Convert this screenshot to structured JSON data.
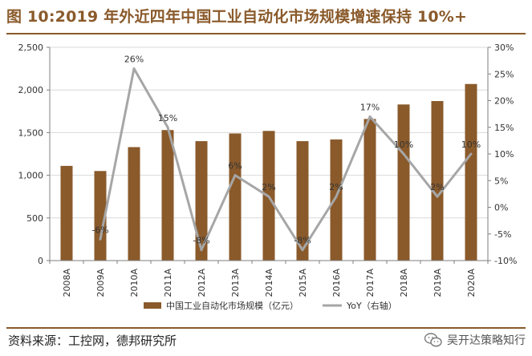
{
  "header": {
    "title": "图 10:2019 年外近四年中国工业自动化市场规模增速保持 10%+"
  },
  "footer": {
    "source": "资料来源：工控网，德邦研究所",
    "watermark": "吴开达策略知行"
  },
  "colors": {
    "bar": "#8a5a2b",
    "line": "#a6a6a6",
    "title": "#8a5a2b",
    "axis": "#7f7f7f"
  },
  "chart_data": {
    "type": "bar",
    "title": "",
    "categories": [
      "2008A",
      "2009A",
      "2010A",
      "2011A",
      "2012A",
      "2013A",
      "2014A",
      "2015A",
      "2016A",
      "2017A",
      "2018A",
      "2019A",
      "2020A"
    ],
    "series": [
      {
        "name": "中国工业自动化市场规模（亿元）",
        "type": "bar",
        "axis": "left",
        "values": [
          1110,
          1050,
          1330,
          1530,
          1400,
          1490,
          1520,
          1400,
          1420,
          1660,
          1830,
          1870,
          2070
        ]
      },
      {
        "name": "YoY（右轴）",
        "type": "line",
        "axis": "right",
        "values": [
          null,
          -6,
          26,
          15,
          -8,
          6,
          2,
          -8,
          2,
          17,
          10,
          2,
          10
        ],
        "labels": [
          "",
          "-6%",
          "26%",
          "15%",
          "-8%",
          "6%",
          "2%",
          "-8%",
          "2%",
          "17%",
          "10%",
          "2%",
          "10%"
        ]
      }
    ],
    "y_left": {
      "range": [
        0,
        2500
      ],
      "ticks": [
        0,
        500,
        1000,
        1500,
        2000,
        2500
      ],
      "tick_labels": [
        "0",
        "500",
        "1,000",
        "1,500",
        "2,000",
        "2,500"
      ]
    },
    "y_right": {
      "range": [
        -10,
        30
      ],
      "ticks": [
        -10,
        -5,
        0,
        5,
        10,
        15,
        20,
        25,
        30
      ],
      "tick_labels": [
        "-10%",
        "-5%",
        "0%",
        "5%",
        "10%",
        "15%",
        "20%",
        "25%",
        "30%"
      ]
    },
    "grid": "horizontal",
    "legend": "bottom-center",
    "legend_entries": [
      "中国工业自动化市场规模（亿元）",
      "YoY（右轴）"
    ]
  }
}
